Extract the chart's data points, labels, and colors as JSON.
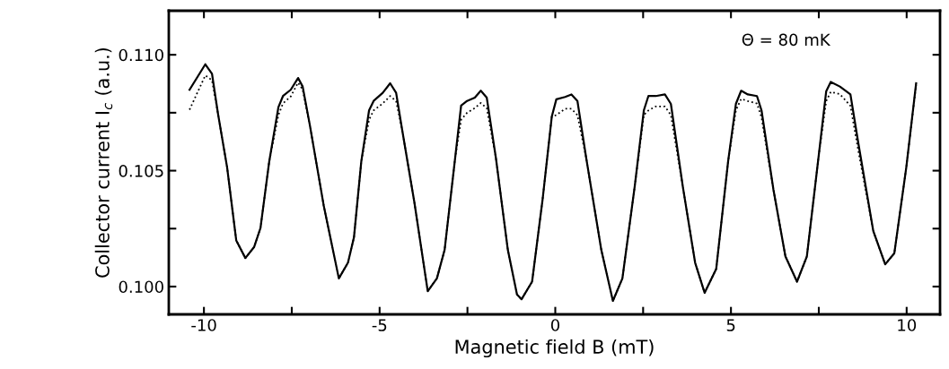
{
  "chart_data": {
    "type": "line",
    "xlabel": "Magnetic field B (mT)",
    "ylabel": "Collector current I$_{c}$ (a.u.)",
    "annotations": [
      "Θ = 80 mK"
    ],
    "xlim": [
      -11.0,
      10.95
    ],
    "ylim": [
      0.0988,
      0.1119
    ],
    "xticks": [
      -10,
      {
        "value": -7.5,
        "label": null
      },
      -5,
      {
        "value": -2.5,
        "label": null
      },
      0,
      {
        "value": 2.5,
        "label": null
      },
      5,
      {
        "value": 7.5,
        "label": null
      },
      10
    ],
    "yticks": [
      {
        "value": 0.1,
        "label": "0.100"
      },
      {
        "value": 0.1025,
        "label": null
      },
      {
        "value": 0.105,
        "label": "0.105"
      },
      {
        "value": 0.1075,
        "label": null
      },
      {
        "value": 0.11,
        "label": "0.110"
      }
    ],
    "grid": false,
    "legend": false,
    "marker": "none",
    "series": [
      {
        "color": "#000000",
        "line_style": "solid",
        "x": [
          -10.41,
          -9.96,
          -9.77,
          -9.6,
          -9.34,
          -9.08,
          -8.82,
          -8.57,
          -8.39,
          -8.14,
          -7.88,
          -7.75,
          -7.53,
          -7.32,
          -7.19,
          -6.98,
          -6.59,
          -6.16,
          -5.9,
          -5.73,
          -5.52,
          -5.3,
          -5.17,
          -4.91,
          -4.7,
          -4.53,
          -4.36,
          -4.01,
          -3.63,
          -3.37,
          -3.15,
          -2.85,
          -2.68,
          -2.51,
          -2.29,
          -2.12,
          -1.95,
          -1.69,
          -1.35,
          -1.09,
          -0.96,
          -0.66,
          -0.36,
          -0.1,
          0.03,
          0.28,
          0.46,
          0.63,
          0.88,
          1.31,
          1.64,
          1.91,
          2.26,
          2.52,
          2.65,
          2.86,
          3.12,
          3.29,
          3.63,
          3.98,
          4.25,
          4.58,
          4.92,
          5.14,
          5.29,
          5.48,
          5.74,
          5.87,
          6.21,
          6.55,
          6.88,
          7.16,
          7.5,
          7.71,
          7.84,
          8.1,
          8.4,
          8.62,
          9.05,
          9.39,
          9.65,
          9.99,
          10.27
        ],
        "values": [
          0.10849,
          0.10959,
          0.10918,
          0.10746,
          0.10514,
          0.10199,
          0.10123,
          0.10171,
          0.10253,
          0.10541,
          0.10774,
          0.10822,
          0.10849,
          0.109,
          0.10863,
          0.10692,
          0.10349,
          0.10035,
          0.10103,
          0.10212,
          0.10541,
          0.1076,
          0.10801,
          0.10836,
          0.10877,
          0.10836,
          0.10678,
          0.10363,
          0.0998,
          0.10035,
          0.10158,
          0.10555,
          0.10781,
          0.10801,
          0.10815,
          0.10845,
          0.10815,
          0.10555,
          0.10158,
          0.09966,
          0.09945,
          0.10021,
          0.10377,
          0.10733,
          0.10808,
          0.10818,
          0.10829,
          0.10801,
          0.10555,
          0.10158,
          0.09938,
          0.10035,
          0.10431,
          0.1076,
          0.10822,
          0.10822,
          0.10829,
          0.10788,
          0.10431,
          0.10103,
          0.09973,
          0.10076,
          0.10541,
          0.10788,
          0.10845,
          0.10829,
          0.10822,
          0.1076,
          0.10417,
          0.1013,
          0.10021,
          0.1013,
          0.10568,
          0.10842,
          0.10883,
          0.10863,
          0.10829,
          0.10623,
          0.1024,
          0.10096,
          0.10144,
          0.10514,
          0.10877
        ]
      },
      {
        "color": "#000000",
        "line_style": "dotted",
        "x": [
          -10.41,
          -9.96,
          -9.77,
          -9.6,
          -9.34,
          -9.08,
          -8.82,
          -8.57,
          -8.39,
          -8.14,
          -7.88,
          -7.75,
          -7.53,
          -7.32,
          -7.19,
          -6.98,
          -6.59,
          -6.16,
          -5.9,
          -5.73,
          -5.52,
          -5.3,
          -5.17,
          -4.91,
          -4.7,
          -4.53,
          -4.36,
          -4.01,
          -3.63,
          -3.37,
          -3.15,
          -2.85,
          -2.68,
          -2.51,
          -2.29,
          -2.12,
          -1.95,
          -1.69,
          -1.35,
          -1.09,
          -0.96,
          -0.66,
          -0.36,
          -0.1,
          0.03,
          0.28,
          0.46,
          0.63,
          0.88,
          1.31,
          1.64,
          1.91,
          2.26,
          2.52,
          2.65,
          2.86,
          3.12,
          3.29,
          3.63,
          3.98,
          4.25,
          4.58,
          4.92,
          5.14,
          5.29,
          5.48,
          5.74,
          5.87,
          6.21,
          6.55,
          6.88,
          7.16,
          7.5,
          7.71,
          7.84,
          8.1,
          8.4,
          8.62,
          9.05,
          9.39,
          9.65,
          9.99,
          10.27
        ],
        "values": [
          0.10763,
          0.10911,
          0.1089,
          0.10746,
          0.10514,
          0.10199,
          0.10123,
          0.10171,
          0.10253,
          0.10541,
          0.1074,
          0.1079,
          0.1082,
          0.1088,
          0.1085,
          0.10692,
          0.10349,
          0.10035,
          0.10103,
          0.10212,
          0.10541,
          0.1072,
          0.1076,
          0.1079,
          0.10822,
          0.108,
          0.10678,
          0.10363,
          0.0998,
          0.10035,
          0.10158,
          0.10555,
          0.1072,
          0.1075,
          0.1077,
          0.10792,
          0.1077,
          0.10555,
          0.10158,
          0.09966,
          0.09945,
          0.10021,
          0.10377,
          0.10733,
          0.1074,
          0.10767,
          0.10767,
          0.1074,
          0.10555,
          0.10158,
          0.09938,
          0.10035,
          0.10431,
          0.1074,
          0.1076,
          0.10777,
          0.10777,
          0.1074,
          0.10431,
          0.10103,
          0.09973,
          0.10076,
          0.10541,
          0.1076,
          0.1081,
          0.108,
          0.1079,
          0.1073,
          0.10417,
          0.1013,
          0.10021,
          0.1013,
          0.10568,
          0.108,
          0.1084,
          0.1083,
          0.1078,
          0.1059,
          0.1024,
          0.10096,
          0.10144,
          0.10514,
          0.1087
        ]
      }
    ]
  }
}
